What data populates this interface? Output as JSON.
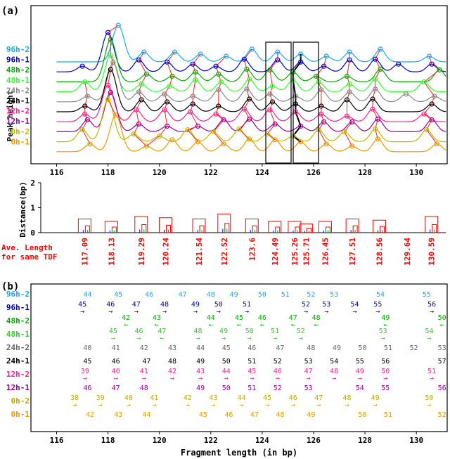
{
  "panel_labels": [
    "(a)",
    "(b)"
  ],
  "x_axis_label": "Fragment length (in bp)",
  "ave_length_label": [
    "Ave. Length",
    "for same TDF"
  ],
  "chart_data": [
    {
      "id": "peak-traces",
      "type": "line",
      "ylabel": "Peak height",
      "xlim": [
        115,
        131.2
      ],
      "x_ticks": [
        116,
        118,
        120,
        122,
        124,
        126,
        128,
        130
      ],
      "series": [
        {
          "name": "96h-2",
          "color": "#1fa8ee",
          "peaks": [
            118.4,
            119.4,
            120.6,
            121.6,
            122.6,
            123.6,
            124.6,
            125.5,
            126.5,
            127.4,
            128.6,
            130.5
          ]
        },
        {
          "name": "96h-1",
          "color": "#0000cc",
          "peaks": [
            117.0,
            118.0,
            119.2,
            120.3,
            121.3,
            122.2,
            123.3,
            124.6,
            125.5,
            126.4,
            127.4,
            128.4,
            129.3,
            130.6
          ]
        },
        {
          "name": "48h-2",
          "color": "#00aa00",
          "peaks": [
            118.1,
            119.5,
            120.5,
            121.4,
            122.3,
            123.4,
            124.3,
            125.2,
            126.1,
            127.3,
            128.6,
            130.9
          ]
        },
        {
          "name": "48h-1",
          "color": "#33ff33",
          "peaks": [
            117.1,
            118.1,
            119.3,
            120.4,
            121.4,
            122.4,
            123.5,
            124.4,
            125.2,
            126.2,
            127.4,
            128.4,
            130.3
          ]
        },
        {
          "name": "24h-2",
          "color": "#888888",
          "peaks": [
            117.2,
            118.2,
            119.2,
            120.2,
            121.3,
            122.3,
            123.4,
            124.3,
            125.3,
            126.3,
            127.4,
            128.4,
            129.6,
            130.7
          ]
        },
        {
          "name": "24h-1",
          "color": "#000000",
          "peaks": [
            117.1,
            118.1,
            119.3,
            120.3,
            121.3,
            122.3,
            123.5,
            124.4,
            125.3,
            126.3,
            127.3,
            128.3,
            130.6
          ]
        },
        {
          "name": "12h-2",
          "color": "#ff2290",
          "peaks": [
            117.1,
            118.0,
            119.1,
            120.2,
            121.2,
            122.2,
            123.3,
            124.3,
            125.3,
            126.3,
            127.3,
            128.3,
            130.3
          ]
        },
        {
          "name": "12h-1",
          "color": "#990099",
          "peaks": [
            117.2,
            118.1,
            119.2,
            120.3,
            121.5,
            122.5,
            123.5,
            124.5,
            125.5,
            126.4,
            127.5,
            128.5,
            130.6
          ]
        },
        {
          "name": "0h-2",
          "color": "#bbbb00",
          "peaks": [
            117.0,
            118.0,
            119.0,
            120.0,
            121.1,
            122.1,
            123.1,
            124.2,
            125.2,
            126.2,
            127.2,
            128.4,
            130.4
          ]
        },
        {
          "name": "0h-1",
          "color": "#ee9900",
          "peaks": [
            117.3,
            118.3,
            119.5,
            120.5,
            121.5,
            122.5,
            123.5,
            124.5,
            125.5,
            126.5,
            127.5,
            128.5,
            130.8
          ]
        }
      ]
    },
    {
      "id": "distance-dendrogram",
      "type": "bar",
      "ylabel": "Distance(bp)",
      "ylim": [
        0,
        2
      ],
      "y_ticks": [
        0,
        1,
        2
      ],
      "categories": [
        "117.09",
        "118.13",
        "119.29",
        "120.24",
        "121.54",
        "122.52",
        "123.6",
        "124.49",
        "125.26",
        "125.71",
        "126.45",
        "127.51",
        "128.56",
        "129.64",
        "130.59"
      ],
      "values": [
        0.55,
        0.45,
        0.65,
        0.6,
        0.55,
        0.75,
        0.55,
        0.45,
        0.45,
        0.35,
        0.45,
        0.55,
        0.5,
        0.0,
        0.65
      ]
    },
    {
      "id": "fragment-table",
      "type": "table",
      "xlim": [
        115,
        131.2
      ],
      "x_ticks": [
        116,
        118,
        120,
        122,
        124,
        126,
        128,
        130
      ],
      "rows": [
        {
          "name": "96h-2",
          "color": "#1fa8ee",
          "cells": [
            {
              "x": 117.2,
              "v": "44"
            },
            {
              "x": 118.4,
              "v": "45"
            },
            {
              "x": 119.6,
              "v": "46"
            },
            {
              "x": 120.9,
              "v": "47"
            },
            {
              "x": 122.0,
              "v": "48"
            },
            {
              "x": 122.9,
              "v": "49"
            },
            {
              "x": 124.0,
              "v": "50"
            },
            {
              "x": 124.9,
              "v": "51"
            },
            {
              "x": 125.9,
              "v": "52"
            },
            {
              "x": 126.8,
              "v": "53"
            },
            {
              "x": 128.6,
              "v": "54"
            },
            {
              "x": 130.4,
              "v": "55"
            }
          ]
        },
        {
          "name": "96h-1",
          "color": "#0000cc",
          "cells": [
            {
              "x": 117.0,
              "v": "45",
              "a": "→"
            },
            {
              "x": 118.1,
              "v": "46",
              "a": "→"
            },
            {
              "x": 119.1,
              "v": "47",
              "a": "→"
            },
            {
              "x": 120.2,
              "v": "48",
              "a": "→"
            },
            {
              "x": 121.4,
              "v": "49",
              "a": "→"
            },
            {
              "x": 122.3,
              "v": "50",
              "a": "→"
            },
            {
              "x": 123.4,
              "v": "51",
              "a": "→"
            },
            {
              "x": 125.7,
              "v": "52",
              "a": "→"
            },
            {
              "x": 126.5,
              "v": "53",
              "a": "→"
            },
            {
              "x": 127.6,
              "v": "54",
              "a": "→"
            },
            {
              "x": 128.5,
              "v": "55",
              "a": "→"
            },
            {
              "x": 130.6,
              "v": "56",
              "a": "→"
            }
          ]
        },
        {
          "name": "48h-2",
          "color": "#00aa00",
          "cells": [
            {
              "x": 118.7,
              "v": "42",
              "a": "←"
            },
            {
              "x": 119.9,
              "v": "43",
              "a": "←"
            },
            {
              "x": 122.0,
              "v": "44",
              "a": "←"
            },
            {
              "x": 123.1,
              "v": "45",
              "a": "←"
            },
            {
              "x": 124.0,
              "v": "46",
              "a": "←"
            },
            {
              "x": 125.2,
              "v": "47",
              "a": "←"
            },
            {
              "x": 126.1,
              "v": "48",
              "a": "←"
            },
            {
              "x": 128.8,
              "v": "49",
              "a": "←"
            },
            {
              "x": 131.0,
              "v": "50",
              "a": "←"
            }
          ]
        },
        {
          "name": "48h-1",
          "color": "#33cc33",
          "cells": [
            {
              "x": 118.2,
              "v": "45",
              "a": "→"
            },
            {
              "x": 119.2,
              "v": "46",
              "a": "→"
            },
            {
              "x": 120.1,
              "v": "47",
              "a": "←"
            },
            {
              "x": 121.5,
              "v": "48",
              "a": "→"
            },
            {
              "x": 122.5,
              "v": "49",
              "a": "→"
            },
            {
              "x": 123.5,
              "v": "50",
              "a": "→"
            },
            {
              "x": 124.5,
              "v": "51",
              "a": "→"
            },
            {
              "x": 125.5,
              "v": "52",
              "a": "→"
            },
            {
              "x": 128.7,
              "v": "53",
              "a": "→"
            },
            {
              "x": 130.5,
              "v": "54",
              "a": "→"
            }
          ]
        },
        {
          "name": "24h-2",
          "color": "#666666",
          "cells": [
            {
              "x": 117.2,
              "v": "40"
            },
            {
              "x": 118.3,
              "v": "41"
            },
            {
              "x": 119.4,
              "v": "42"
            },
            {
              "x": 120.5,
              "v": "43"
            },
            {
              "x": 121.6,
              "v": "44"
            },
            {
              "x": 122.6,
              "v": "45"
            },
            {
              "x": 123.6,
              "v": "46"
            },
            {
              "x": 124.7,
              "v": "47"
            },
            {
              "x": 125.9,
              "v": "48"
            },
            {
              "x": 126.9,
              "v": "49"
            },
            {
              "x": 127.9,
              "v": "50"
            },
            {
              "x": 128.9,
              "v": "51"
            },
            {
              "x": 129.9,
              "v": "52"
            },
            {
              "x": 131.0,
              "v": "53"
            }
          ]
        },
        {
          "name": "24h-1",
          "color": "#000000",
          "cells": [
            {
              "x": 117.2,
              "v": "45"
            },
            {
              "x": 118.3,
              "v": "46"
            },
            {
              "x": 119.5,
              "v": "47"
            },
            {
              "x": 120.5,
              "v": "48"
            },
            {
              "x": 121.6,
              "v": "49"
            },
            {
              "x": 122.6,
              "v": "50"
            },
            {
              "x": 123.6,
              "v": "51"
            },
            {
              "x": 124.6,
              "v": "52"
            },
            {
              "x": 125.8,
              "v": "53"
            },
            {
              "x": 126.8,
              "v": "54"
            },
            {
              "x": 127.8,
              "v": "55"
            },
            {
              "x": 128.8,
              "v": "56"
            },
            {
              "x": 131.0,
              "v": "57"
            }
          ]
        },
        {
          "name": "12h-2",
          "color": "#ff2290",
          "cells": [
            {
              "x": 117.1,
              "v": "39",
              "a": "→"
            },
            {
              "x": 118.3,
              "v": "40",
              "a": "→"
            },
            {
              "x": 119.4,
              "v": "41",
              "a": "→"
            },
            {
              "x": 120.5,
              "v": "42",
              "a": "→"
            },
            {
              "x": 121.6,
              "v": "43",
              "a": "→"
            },
            {
              "x": 122.6,
              "v": "44",
              "a": "→"
            },
            {
              "x": 123.6,
              "v": "45",
              "a": "→"
            },
            {
              "x": 124.6,
              "v": "46",
              "a": "→"
            },
            {
              "x": 125.8,
              "v": "47",
              "a": "→"
            },
            {
              "x": 126.8,
              "v": "48",
              "a": "→"
            },
            {
              "x": 127.8,
              "v": "49",
              "a": "→"
            },
            {
              "x": 128.8,
              "v": "50",
              "a": "→"
            },
            {
              "x": 130.6,
              "v": "51",
              "a": "→"
            }
          ]
        },
        {
          "name": "12h-1",
          "color": "#990099",
          "cells": [
            {
              "x": 117.2,
              "v": "46"
            },
            {
              "x": 118.3,
              "v": "47"
            },
            {
              "x": 119.4,
              "v": "48"
            },
            {
              "x": 121.6,
              "v": "49"
            },
            {
              "x": 122.6,
              "v": "50"
            },
            {
              "x": 123.6,
              "v": "51"
            },
            {
              "x": 124.6,
              "v": "52"
            },
            {
              "x": 125.8,
              "v": "53"
            },
            {
              "x": 127.8,
              "v": "54"
            },
            {
              "x": 128.8,
              "v": "55"
            },
            {
              "x": 131.0,
              "v": "56"
            }
          ]
        },
        {
          "name": "0h-2",
          "color": "#bbaa00",
          "cells": [
            {
              "x": 116.7,
              "v": "38",
              "a": "→"
            },
            {
              "x": 117.7,
              "v": "39",
              "a": "→"
            },
            {
              "x": 118.8,
              "v": "40",
              "a": "→"
            },
            {
              "x": 119.8,
              "v": "41",
              "a": "→"
            },
            {
              "x": 121.1,
              "v": "42",
              "a": "→"
            },
            {
              "x": 122.1,
              "v": "43",
              "a": "→"
            },
            {
              "x": 123.2,
              "v": "44",
              "a": "→"
            },
            {
              "x": 124.2,
              "v": "45",
              "a": "→"
            },
            {
              "x": 125.2,
              "v": "46",
              "a": "→"
            },
            {
              "x": 126.2,
              "v": "47",
              "a": "→"
            },
            {
              "x": 127.3,
              "v": "48",
              "a": "→"
            },
            {
              "x": 128.4,
              "v": "49",
              "a": "→"
            },
            {
              "x": 130.5,
              "v": "50",
              "a": "→"
            }
          ]
        },
        {
          "name": "0h-1",
          "color": "#ee9900",
          "cells": [
            {
              "x": 117.3,
              "v": "42"
            },
            {
              "x": 118.4,
              "v": "43"
            },
            {
              "x": 119.5,
              "v": "44"
            },
            {
              "x": 121.7,
              "v": "45"
            },
            {
              "x": 122.7,
              "v": "46"
            },
            {
              "x": 123.7,
              "v": "47"
            },
            {
              "x": 124.7,
              "v": "48"
            },
            {
              "x": 125.9,
              "v": "49"
            },
            {
              "x": 127.9,
              "v": "50"
            },
            {
              "x": 128.9,
              "v": "51"
            },
            {
              "x": 131.0,
              "v": "52"
            }
          ]
        }
      ]
    }
  ]
}
